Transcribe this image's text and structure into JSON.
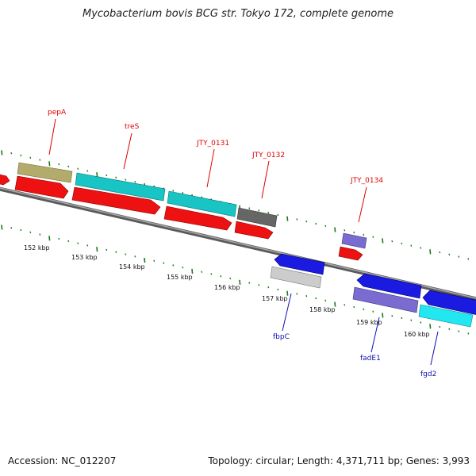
{
  "title": "Mycobacterium bovis BCG str. Tokyo 172, complete genome",
  "footer": {
    "accession": "Accession: NC_012207",
    "summary": "Topology: circular; Length: 4,371,711 bp; Genes: 3,993"
  },
  "colors": {
    "cds_red": "#ee1111",
    "teal": "#19c4c4",
    "olive": "#b3ab6c",
    "blue": "#1a1ae0",
    "purple": "#7a6bd0",
    "gray": "#666666",
    "light_gray": "#cccccc",
    "cyan": "#22e6f0",
    "backbone": "#8a8a8a",
    "tick_green": "#1a7a1a"
  },
  "top_labels": [
    "pepA",
    "treS",
    "JTY_0131",
    "JTY_0132",
    "JTY_0134"
  ],
  "bottom_labels": [
    "fbpC",
    "fadE1",
    "fgd2"
  ],
  "kbp_labels": [
    "152 kbp",
    "153 kbp",
    "154 kbp",
    "155 kbp",
    "156 kbp",
    "157 kbp",
    "158 kbp",
    "159 kbp",
    "160 kbp"
  ]
}
